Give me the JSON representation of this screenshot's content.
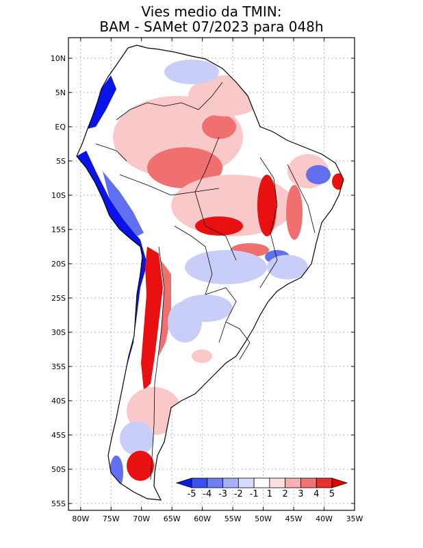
{
  "title": {
    "line1": "Vies medio da TMIN:",
    "line2": "BAM - SAMet 07/2023  para 048h"
  },
  "axes": {
    "lat_labels": [
      "10N",
      "5N",
      "EQ",
      "5S",
      "10S",
      "15S",
      "20S",
      "25S",
      "30S",
      "35S",
      "40S",
      "45S",
      "50S",
      "55S"
    ],
    "lat_values": [
      10,
      5,
      0,
      -5,
      -10,
      -15,
      -20,
      -25,
      -30,
      -35,
      -40,
      -45,
      -50,
      -55
    ],
    "lon_labels": [
      "80W",
      "75W",
      "70W",
      "65W",
      "60W",
      "55W",
      "50W",
      "45W",
      "40W",
      "35W"
    ],
    "lon_values": [
      -80,
      -75,
      -70,
      -65,
      -60,
      -55,
      -50,
      -45,
      -40,
      -35
    ],
    "lat_range": [
      -56,
      13
    ],
    "lon_range": [
      -82,
      -35
    ]
  },
  "colorbar": {
    "labels": [
      "-5",
      "-4",
      "-3",
      "-2",
      "-1",
      "1",
      "2",
      "3",
      "4",
      "5"
    ],
    "colors": [
      "#0a1ee0",
      "#3850f0",
      "#7080f4",
      "#a8b0f8",
      "#d8dcfc",
      "#ffffff",
      "#fce0e0",
      "#f8b0b0",
      "#f07474",
      "#e83030",
      "#e00000"
    ]
  },
  "map": {
    "grid_lines": "dotted",
    "variable": "TMIN bias",
    "colors": {
      "warm_strong": "#e81010",
      "warm_mid": "#f07070",
      "warm_light": "#f9c8c8",
      "cool_strong": "#0a14e8",
      "cool_mid": "#6070f0",
      "cool_light": "#c8cef8",
      "land": "#ffffff",
      "outline": "#000000"
    }
  }
}
